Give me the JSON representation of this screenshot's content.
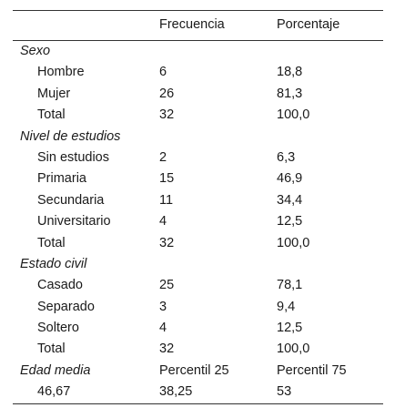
{
  "header": {
    "col_freq": "Frecuencia",
    "col_pct": "Porcentaje"
  },
  "sections": [
    {
      "title": "Sexo",
      "rows": [
        {
          "label": "Hombre",
          "freq": "6",
          "pct": "18,8"
        },
        {
          "label": "Mujer",
          "freq": "26",
          "pct": "81,3"
        },
        {
          "label": "Total",
          "freq": "32",
          "pct": "100,0"
        }
      ]
    },
    {
      "title": "Nivel de estudios",
      "rows": [
        {
          "label": "Sin estudios",
          "freq": "2",
          "pct": "6,3"
        },
        {
          "label": "Primaria",
          "freq": "15",
          "pct": "46,9"
        },
        {
          "label": "Secundaria",
          "freq": "11",
          "pct": "34,4"
        },
        {
          "label": "Universitario",
          "freq": "4",
          "pct": "12,5"
        },
        {
          "label": "Total",
          "freq": "32",
          "pct": "100,0"
        }
      ]
    },
    {
      "title": "Estado civil",
      "rows": [
        {
          "label": "Casado",
          "freq": "25",
          "pct": "78,1"
        },
        {
          "label": "Separado",
          "freq": "3",
          "pct": "9,4"
        },
        {
          "label": "Soltero",
          "freq": "4",
          "pct": "12,5"
        },
        {
          "label": "Total",
          "freq": "32",
          "pct": "100,0"
        }
      ]
    }
  ],
  "age": {
    "title": "Edad media",
    "p25_label": "Percentil 25",
    "p75_label": "Percentil 75",
    "mean": "46,67",
    "p25": "38,25",
    "p75": "53"
  }
}
